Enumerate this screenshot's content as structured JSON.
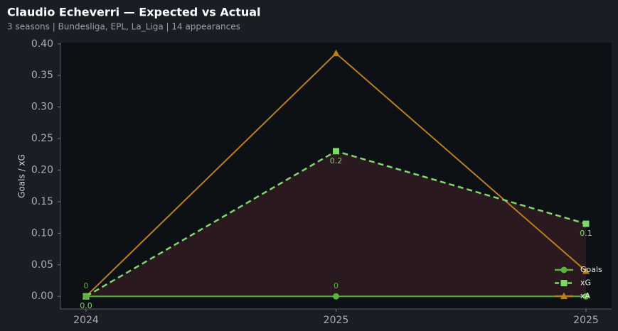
{
  "chart_data": {
    "type": "line",
    "title": "Claudio Echeverri — Expected vs Actual",
    "subtitle": "3 seasons | Bundesliga, EPL, La_Liga | 14 appearances",
    "y_label": "Goals / xG",
    "categories": [
      "2024",
      "2025",
      "2025"
    ],
    "series": [
      {
        "name": "Goals",
        "color": "#5bb33d",
        "marker": "circle",
        "dash": false,
        "values": [
          0,
          0,
          0
        ],
        "value_labels": [
          "0",
          "0",
          null
        ]
      },
      {
        "name": "xG",
        "color": "#7fd66b",
        "marker": "square",
        "dash": true,
        "fill": "#2e1b1f",
        "values": [
          0,
          0.23,
          0.115
        ],
        "value_labels": [
          "0.0",
          "0.2",
          "0.1"
        ]
      },
      {
        "name": "xA",
        "color": "#b97f1f",
        "marker": "triangle",
        "dash": false,
        "values": [
          0,
          0.385,
          0.04
        ]
      }
    ],
    "ylim": [
      -0.02,
      0.402
    ],
    "yticks": [
      {
        "value": 0,
        "label": "0.00"
      },
      {
        "value": 0.05,
        "label": "0.05"
      },
      {
        "value": 0.1,
        "label": "0.10"
      },
      {
        "value": 0.15,
        "label": "0.15"
      },
      {
        "value": 0.2,
        "label": "0.20"
      },
      {
        "value": 0.25,
        "label": "0.25"
      },
      {
        "value": 0.3,
        "label": "0.30"
      },
      {
        "value": 0.35,
        "label": "0.35"
      },
      {
        "value": 0.4,
        "label": "0.40"
      }
    ],
    "legend": "lower right"
  }
}
